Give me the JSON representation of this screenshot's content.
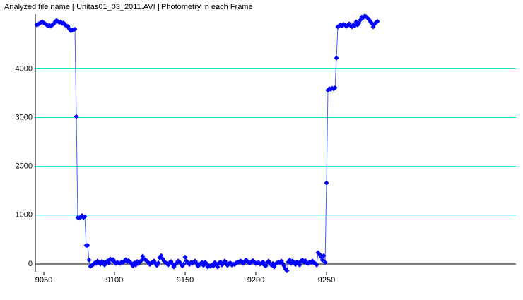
{
  "chart_data": {
    "type": "line",
    "title": "Analyzed file name [ Unitas01_03_2011.AVI ]",
    "subtitle": "Photometry in each Frame",
    "x": [
      9045,
      9046,
      9047,
      9048,
      9049,
      9050,
      9051,
      9052,
      9053,
      9054,
      9055,
      9056,
      9057,
      9058,
      9059,
      9060,
      9061,
      9062,
      9063,
      9064,
      9065,
      9066,
      9067,
      9068,
      9069,
      9070,
      9071,
      9072,
      9073,
      9074,
      9075,
      9076,
      9077,
      9078,
      9079,
      9080,
      9081,
      9082,
      9083,
      9084,
      9085,
      9086,
      9087,
      9088,
      9089,
      9090,
      9091,
      9092,
      9093,
      9094,
      9095,
      9096,
      9097,
      9098,
      9099,
      9100,
      9101,
      9102,
      9103,
      9104,
      9105,
      9106,
      9107,
      9108,
      9109,
      9110,
      9111,
      9112,
      9113,
      9114,
      9115,
      9116,
      9117,
      9118,
      9119,
      9120,
      9121,
      9122,
      9123,
      9124,
      9125,
      9126,
      9127,
      9128,
      9129,
      9130,
      9131,
      9132,
      9133,
      9134,
      9135,
      9136,
      9137,
      9138,
      9139,
      9140,
      9141,
      9142,
      9143,
      9144,
      9145,
      9146,
      9147,
      9148,
      9149,
      9150,
      9151,
      9152,
      9153,
      9154,
      9155,
      9156,
      9157,
      9158,
      9159,
      9160,
      9161,
      9162,
      9163,
      9164,
      9165,
      9166,
      9167,
      9168,
      9169,
      9170,
      9171,
      9172,
      9173,
      9174,
      9175,
      9176,
      9177,
      9178,
      9179,
      9180,
      9181,
      9182,
      9183,
      9184,
      9185,
      9186,
      9187,
      9188,
      9189,
      9190,
      9191,
      9192,
      9193,
      9194,
      9195,
      9196,
      9197,
      9198,
      9199,
      9200,
      9201,
      9202,
      9203,
      9204,
      9205,
      9206,
      9207,
      9208,
      9209,
      9210,
      9211,
      9212,
      9213,
      9214,
      9215,
      9216,
      9217,
      9218,
      9219,
      9220,
      9221,
      9222,
      9223,
      9224,
      9225,
      9226,
      9227,
      9228,
      9229,
      9230,
      9231,
      9232,
      9233,
      9234,
      9235,
      9236,
      9237,
      9238,
      9239,
      9240,
      9241,
      9242,
      9243,
      9244,
      9245,
      9246,
      9247,
      9248,
      9249,
      9250,
      9251,
      9252,
      9253,
      9254,
      9255,
      9256,
      9257,
      9258,
      9259,
      9260,
      9261,
      9262,
      9263,
      9264,
      9265,
      9266,
      9267,
      9268,
      9269,
      9270,
      9271,
      9272,
      9273,
      9274,
      9275,
      9276,
      9277,
      9278,
      9279,
      9280,
      9281,
      9282,
      9283,
      9284,
      9285,
      9286
    ],
    "series": [
      {
        "color": "#0000ff",
        "values": [
          4900,
          4910,
          4930,
          4950,
          4960,
          4940,
          4920,
          4900,
          4880,
          4890,
          4870,
          4900,
          4920,
          4960,
          4990,
          4970,
          4950,
          4960,
          4930,
          4940,
          4900,
          4880,
          4870,
          4820,
          4780,
          4790,
          4800,
          4810,
          3020,
          950,
          940,
          960,
          990,
          950,
          970,
          380,
          380,
          80,
          -50,
          -30,
          -10,
          20,
          10,
          60,
          30,
          0,
          50,
          40,
          -20,
          40,
          60,
          20,
          100,
          80,
          90,
          40,
          10,
          30,
          20,
          10,
          40,
          30,
          60,
          90,
          50,
          70,
          40,
          0,
          -40,
          20,
          -20,
          50,
          10,
          40,
          70,
          160,
          100,
          80,
          60,
          30,
          -10,
          20,
          40,
          60,
          10,
          -30,
          20,
          130,
          170,
          110,
          60,
          30,
          10,
          -20,
          30,
          50,
          0,
          -60,
          -10,
          20,
          60,
          40,
          10,
          -40,
          0,
          140,
          60,
          20,
          -10,
          30,
          10,
          40,
          60,
          20,
          -40,
          -20,
          10,
          30,
          -30,
          40,
          10,
          -60,
          -40,
          -50,
          -20,
          -40,
          30,
          0,
          -60,
          20,
          40,
          -20,
          10,
          60,
          20,
          -30,
          10,
          20,
          -20,
          0,
          -10,
          20,
          30,
          40,
          60,
          50,
          10,
          40,
          80,
          60,
          30,
          20,
          50,
          70,
          40,
          10,
          20,
          30,
          0,
          10,
          40,
          -20,
          -40,
          30,
          60,
          10,
          -20,
          10,
          -60,
          0,
          20,
          40,
          30,
          60,
          10,
          -40,
          -100,
          -140,
          40,
          80,
          10,
          60,
          30,
          -10,
          40,
          20,
          -20,
          60,
          80,
          40,
          70,
          20,
          10,
          40,
          30,
          60,
          20,
          10,
          -20,
          230,
          200,
          150,
          80,
          170,
          30,
          1660,
          3560,
          3590,
          3580,
          3600,
          3590,
          3610,
          4220,
          4860,
          4880,
          4900,
          4880,
          4910,
          4900,
          4870,
          4890,
          4920,
          4880,
          4860,
          4900,
          4880,
          4960,
          4900,
          4940,
          5000,
          5060,
          5050,
          5080,
          5070,
          5040,
          5010,
          4970,
          4930,
          4860,
          4920,
          4950,
          4970
        ]
      }
    ],
    "xlim": [
      9044,
      9384
    ],
    "xticks": [
      9050,
      9100,
      9150,
      9200,
      9250
    ],
    "ylim": [
      -160,
      5120
    ],
    "yticks": [
      0,
      1000,
      2000,
      3000,
      4000
    ],
    "grid": true,
    "grid_color": "#00e0e0",
    "line_color": "#4a5cff"
  }
}
